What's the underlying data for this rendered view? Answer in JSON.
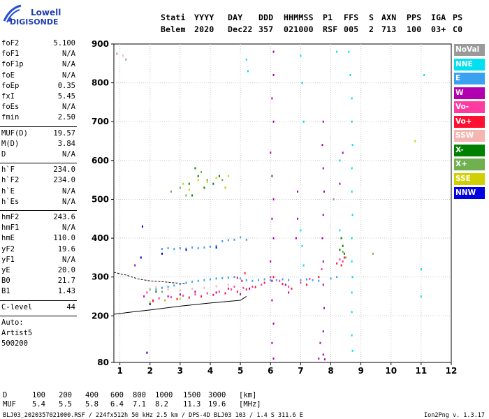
{
  "logo": {
    "line1": "Lowell",
    "line2": "DIGISONDE"
  },
  "header": {
    "row1": [
      "Stati",
      "YYYY",
      "DAY",
      "DDD",
      "HHMMSS",
      "P1",
      "FFS",
      "S",
      "AXN",
      "PPS",
      "IGA",
      "PS"
    ],
    "row2": [
      "Belem",
      "2020",
      "Dec22",
      "357",
      "021000",
      "RSF",
      "005",
      "2",
      "713",
      "100",
      "03+",
      "C0"
    ]
  },
  "params": {
    "group1": [
      {
        "label": "foF2",
        "value": "5.100"
      },
      {
        "label": "foF1",
        "value": "N/A"
      },
      {
        "label": "foF1p",
        "value": "N/A"
      },
      {
        "label": "foE",
        "value": "N/A"
      },
      {
        "label": "foEp",
        "value": "0.35"
      },
      {
        "label": "fxI",
        "value": "5.45"
      },
      {
        "label": "foEs",
        "value": "N/A"
      },
      {
        "label": "fmin",
        "value": "2.50"
      }
    ],
    "group2": [
      {
        "label": "MUF(D)",
        "value": "19.57"
      },
      {
        "label": "M(D)",
        "value": "3.84"
      },
      {
        "label": "D",
        "value": "N/A"
      }
    ],
    "group3": [
      {
        "label": "h`F",
        "value": "234.0"
      },
      {
        "label": "h`F2",
        "value": "234.0"
      },
      {
        "label": "h`E",
        "value": "N/A"
      },
      {
        "label": "h`Es",
        "value": "N/A"
      }
    ],
    "group4": [
      {
        "label": "hmF2",
        "value": "243.6"
      },
      {
        "label": "hmF1",
        "value": "N/A"
      },
      {
        "label": "hmE",
        "value": "110.0"
      },
      {
        "label": "yF2",
        "value": "19.6"
      },
      {
        "label": "yF1",
        "value": "N/A"
      },
      {
        "label": "yE",
        "value": "20.0"
      },
      {
        "label": "B0",
        "value": "21.7"
      },
      {
        "label": "B1",
        "value": "1.43"
      }
    ],
    "clevel": {
      "label": "C-level",
      "value": "44"
    },
    "auto": [
      "Auto:",
      "Artist5",
      "500200"
    ]
  },
  "legend": [
    {
      "label": "NoVal",
      "color": "#9a9a9a"
    },
    {
      "label": "NNE",
      "color": "#00e0f0"
    },
    {
      "label": "E",
      "color": "#3aa0f0"
    },
    {
      "label": "W",
      "color": "#b000b0"
    },
    {
      "label": "Vo-",
      "color": "#ff3aa0"
    },
    {
      "label": "Vo+",
      "color": "#ff1030"
    },
    {
      "label": "SSW",
      "color": "#f5b5b0"
    },
    {
      "label": "X-",
      "color": "#008000"
    },
    {
      "label": "X+",
      "color": "#70b050"
    },
    {
      "label": "SSE",
      "color": "#d0d000"
    },
    {
      "label": "NNW",
      "color": "#0000e0"
    }
  ],
  "muf_table": {
    "d_label": "D",
    "d_values": [
      "100",
      "200",
      "400",
      "600",
      "800",
      "1000",
      "1500",
      "3000"
    ],
    "d_unit": "[km]",
    "muf_label": "MUF",
    "muf_values": [
      "5.4",
      "5.5",
      "5.8",
      "6.4",
      "7.1",
      "8.2",
      "11.3",
      "19.6"
    ],
    "muf_unit": "[MHz]"
  },
  "footer": "BLJ03_2020357021000.RSF / 224fx512h 50 kHz 2.5 km / DPS-4D BLJ03 103 / 1.4 S 311.6 E",
  "version": "Ion2Png v. 1.3.17",
  "chart_data": {
    "type": "scatter",
    "xlim": [
      0.8,
      12
    ],
    "ylim": [
      80,
      900
    ],
    "x_ticks": [
      "1",
      "2",
      "3",
      "4",
      "5",
      "6",
      "7",
      "8",
      "9",
      "10",
      "11",
      "12"
    ],
    "y_ticks": [
      "900",
      "800",
      "700",
      "600",
      "500",
      "400",
      "300",
      "200",
      "80"
    ],
    "grid": true,
    "trace": {
      "x": [
        0.8,
        1.4,
        2.0,
        3.0,
        4.0,
        5.0,
        5.2
      ],
      "y": [
        204,
        210,
        215,
        225,
        233,
        240,
        250
      ]
    },
    "trace_dashed": {
      "x": [
        0.8,
        1.2,
        1.6,
        2.0,
        2.4,
        2.8,
        3.2
      ],
      "y": [
        312,
        305,
        295,
        290,
        288,
        285,
        283
      ]
    },
    "series": [
      {
        "name": "NNE",
        "points": [
          [
            8.6,
            880
          ],
          [
            8.65,
            820
          ],
          [
            8.7,
            760
          ],
          [
            8.7,
            700
          ],
          [
            8.72,
            640
          ],
          [
            8.7,
            580
          ],
          [
            8.7,
            520
          ],
          [
            8.72,
            460
          ],
          [
            8.7,
            400
          ],
          [
            8.7,
            340
          ],
          [
            8.72,
            300
          ],
          [
            8.7,
            260
          ],
          [
            8.7,
            210
          ],
          [
            8.7,
            150
          ],
          [
            8.72,
            110
          ],
          [
            7.0,
            870
          ],
          [
            7.05,
            800
          ],
          [
            7.1,
            700
          ],
          [
            7.0,
            420
          ],
          [
            7.05,
            380
          ],
          [
            7.1,
            330
          ],
          [
            8.2,
            880
          ],
          [
            8.3,
            600
          ],
          [
            8.3,
            420
          ],
          [
            11.1,
            820
          ],
          [
            11.0,
            320
          ],
          [
            11.0,
            250
          ],
          [
            5.2,
            860
          ],
          [
            5.25,
            830
          ]
        ]
      },
      {
        "name": "E",
        "points": [
          [
            2.4,
            372
          ],
          [
            2.6,
            374
          ],
          [
            2.8,
            372
          ],
          [
            3.0,
            374
          ],
          [
            3.2,
            373
          ],
          [
            3.4,
            376
          ],
          [
            3.6,
            374
          ],
          [
            3.8,
            376
          ],
          [
            4.0,
            378
          ],
          [
            4.2,
            380
          ],
          [
            4.4,
            392
          ],
          [
            4.6,
            395
          ],
          [
            4.8,
            396
          ],
          [
            5.0,
            402
          ],
          [
            5.2,
            396
          ],
          [
            2.2,
            268
          ],
          [
            2.4,
            272
          ],
          [
            2.6,
            275
          ],
          [
            2.8,
            278
          ],
          [
            3.0,
            282
          ],
          [
            3.2,
            285
          ],
          [
            3.4,
            288
          ],
          [
            3.6,
            290
          ],
          [
            3.8,
            292
          ],
          [
            4.0,
            294
          ],
          [
            4.2,
            296
          ],
          [
            4.4,
            297
          ],
          [
            4.6,
            298
          ],
          [
            4.8,
            300
          ],
          [
            5.0,
            296
          ],
          [
            5.2,
            292
          ],
          [
            5.4,
            290
          ],
          [
            5.6,
            292
          ],
          [
            5.8,
            294
          ],
          [
            6.0,
            292
          ],
          [
            6.2,
            292
          ],
          [
            6.4,
            294
          ],
          [
            6.6,
            292
          ],
          [
            7.0,
            292
          ],
          [
            7.2,
            294
          ],
          [
            7.4,
            292
          ],
          [
            7.6,
            290
          ],
          [
            8.0,
            296
          ],
          [
            8.2,
            300
          ]
        ]
      },
      {
        "name": "W",
        "points": [
          [
            6.1,
            880
          ],
          [
            6.1,
            820
          ],
          [
            6.05,
            760
          ],
          [
            6.1,
            700
          ],
          [
            6.0,
            620
          ],
          [
            6.05,
            560
          ],
          [
            6.1,
            500
          ],
          [
            6.05,
            450
          ],
          [
            6.1,
            400
          ],
          [
            6.0,
            340
          ],
          [
            6.05,
            290
          ],
          [
            6.05,
            240
          ],
          [
            6.1,
            180
          ],
          [
            6.05,
            130
          ],
          [
            6.1,
            90
          ],
          [
            7.75,
            700
          ],
          [
            7.72,
            640
          ],
          [
            7.75,
            580
          ],
          [
            7.78,
            520
          ],
          [
            7.75,
            460
          ],
          [
            7.72,
            400
          ],
          [
            7.75,
            340
          ],
          [
            7.75,
            280
          ],
          [
            7.78,
            220
          ],
          [
            7.75,
            160
          ],
          [
            7.75,
            100
          ],
          [
            7.8,
            88
          ],
          [
            7.6,
            90
          ],
          [
            7.65,
            130
          ],
          [
            6.9,
            520
          ],
          [
            6.9,
            450
          ],
          [
            6.85,
            400
          ],
          [
            4.2,
            260
          ],
          [
            4.5,
            258
          ],
          [
            5.0,
            256
          ],
          [
            5.3,
            270
          ],
          [
            3.5,
            262
          ],
          [
            3.0,
            255
          ],
          [
            2.6,
            250
          ],
          [
            1.8,
            250
          ],
          [
            1.5,
            330
          ],
          [
            6.6,
            260
          ],
          [
            6.5,
            280
          ],
          [
            8.4,
            620
          ],
          [
            8.3,
            540
          ]
        ]
      },
      {
        "name": "Vo-",
        "points": [
          [
            2.3,
            245
          ],
          [
            2.7,
            248
          ],
          [
            3.1,
            252
          ],
          [
            3.5,
            255
          ],
          [
            3.9,
            258
          ],
          [
            4.3,
            262
          ],
          [
            4.7,
            268
          ],
          [
            5.1,
            272
          ],
          [
            5.4,
            275
          ],
          [
            5.7,
            280
          ],
          [
            6.0,
            300
          ],
          [
            6.3,
            290
          ],
          [
            6.6,
            275
          ],
          [
            7.0,
            285
          ],
          [
            7.3,
            295
          ],
          [
            7.7,
            320
          ],
          [
            8.3,
            345
          ],
          [
            8.4,
            340
          ],
          [
            1.9,
            260
          ],
          [
            2.1,
            240
          ],
          [
            4.8,
            275
          ]
        ]
      },
      {
        "name": "Vo+",
        "points": [
          [
            2.1,
            238
          ],
          [
            2.5,
            240
          ],
          [
            2.9,
            243
          ],
          [
            3.3,
            247
          ],
          [
            3.7,
            250
          ],
          [
            4.1,
            254
          ],
          [
            4.5,
            258
          ],
          [
            4.9,
            262
          ],
          [
            5.2,
            268
          ],
          [
            5.5,
            274
          ],
          [
            5.8,
            285
          ],
          [
            6.1,
            300
          ],
          [
            6.4,
            282
          ],
          [
            6.7,
            270
          ],
          [
            7.2,
            280
          ],
          [
            7.6,
            300
          ],
          [
            8.2,
            335
          ],
          [
            8.35,
            330
          ],
          [
            8.45,
            350
          ],
          [
            5.05,
            290
          ],
          [
            5.15,
            310
          ],
          [
            4.9,
            298
          ],
          [
            4.6,
            270
          ]
        ]
      },
      {
        "name": "SSW",
        "points": [
          [
            2.2,
            274
          ],
          [
            2.6,
            268
          ],
          [
            3.0,
            266
          ],
          [
            3.4,
            270
          ],
          [
            3.8,
            272
          ],
          [
            4.2,
            276
          ],
          [
            4.6,
            280
          ],
          [
            1.1,
            870
          ]
        ]
      },
      {
        "name": "X-",
        "points": [
          [
            3.5,
            580
          ],
          [
            3.6,
            560
          ],
          [
            3.3,
            540
          ],
          [
            3.8,
            530
          ],
          [
            3.4,
            510
          ],
          [
            4.1,
            540
          ],
          [
            4.3,
            560
          ],
          [
            8.4,
            380
          ],
          [
            8.3,
            370
          ],
          [
            8.45,
            360
          ],
          [
            8.35,
            400
          ],
          [
            2.2,
            262
          ]
        ]
      },
      {
        "name": "X+",
        "points": [
          [
            2.7,
            520
          ],
          [
            3.0,
            530
          ],
          [
            3.2,
            510
          ],
          [
            3.7,
            570
          ],
          [
            3.9,
            550
          ],
          [
            4.4,
            550
          ],
          [
            4.5,
            530
          ],
          [
            8.5,
            350
          ],
          [
            8.4,
            365
          ],
          [
            9.4,
            360
          ],
          [
            2.0,
            268
          ],
          [
            2.4,
            262
          ]
        ]
      },
      {
        "name": "SSE",
        "points": [
          [
            3.1,
            540
          ],
          [
            3.3,
            525
          ],
          [
            3.6,
            550
          ],
          [
            3.9,
            545
          ],
          [
            4.2,
            555
          ],
          [
            4.5,
            530
          ],
          [
            4.6,
            560
          ],
          [
            10.8,
            650
          ],
          [
            2.0,
            235
          ],
          [
            2.5,
            240
          ],
          [
            3.0,
            244
          ]
        ]
      },
      {
        "name": "NNW",
        "points": [
          [
            1.9,
            105
          ],
          [
            1.7,
            350
          ],
          [
            1.75,
            430
          ],
          [
            2.4,
            360
          ],
          [
            3.2,
            370
          ],
          [
            4.2,
            376
          ],
          [
            2.0,
            230
          ]
        ]
      },
      {
        "name": "NoVal",
        "points": [
          [
            1.2,
            860
          ],
          [
            0.9,
            875
          ],
          [
            8.1,
            500
          ]
        ]
      }
    ]
  }
}
